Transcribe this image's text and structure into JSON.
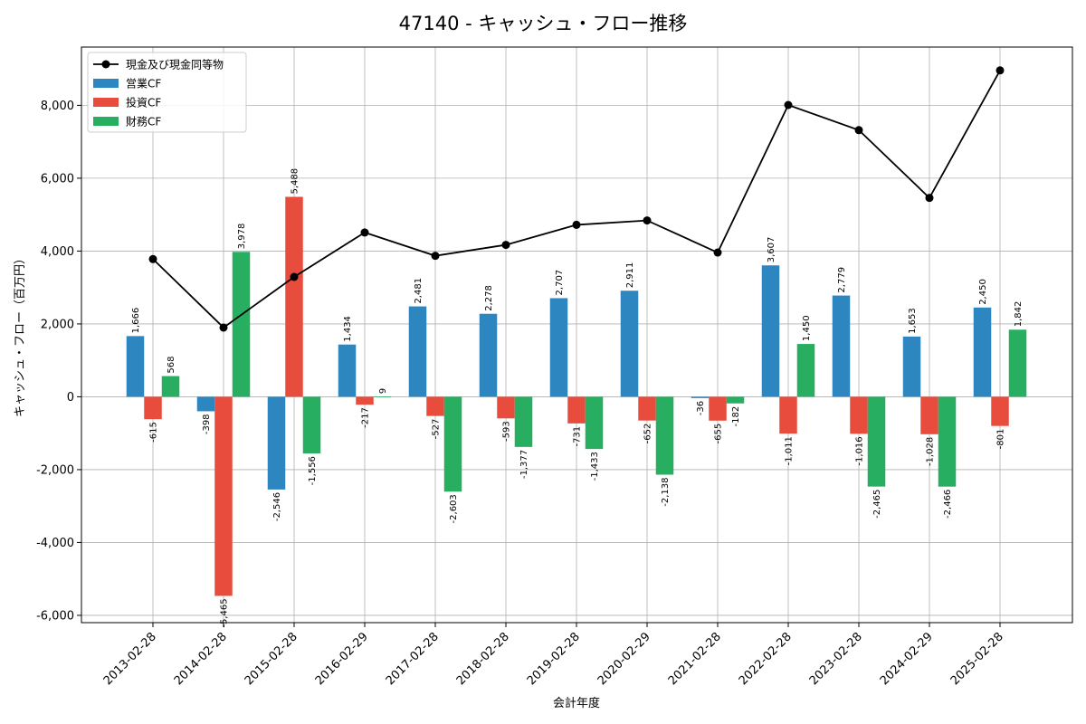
{
  "chart_data": {
    "type": "bar",
    "title": "47140 - キャッシュ・フロー推移",
    "xlabel": "会計年度",
    "ylabel": "キャッシュ・フロー（百万円）",
    "categories": [
      "2013-02-28",
      "2014-02-28",
      "2015-02-28",
      "2016-02-29",
      "2017-02-28",
      "2018-02-28",
      "2019-02-28",
      "2020-02-29",
      "2021-02-28",
      "2022-02-28",
      "2023-02-28",
      "2024-02-29",
      "2025-02-28"
    ],
    "ylim": [
      -6200,
      9600
    ],
    "yticks": [
      -6000,
      -4000,
      -2000,
      0,
      2000,
      4000,
      6000,
      8000
    ],
    "ytick_labels": [
      "-6,000",
      "-4,000",
      "-2,000",
      "0",
      "2,000",
      "4,000",
      "6,000",
      "8,000"
    ],
    "grid": true,
    "legend_position": "top-left",
    "series": [
      {
        "name": "営業CF",
        "kind": "bar",
        "color": "#2e86c1",
        "values": [
          1666,
          -398,
          -2546,
          1434,
          2481,
          2278,
          2707,
          2911,
          -36,
          3607,
          2779,
          1653,
          2450
        ],
        "labels": [
          "1,666",
          "-398",
          "-2,546",
          "1,434",
          "2,481",
          "2,278",
          "2,707",
          "2,911",
          "-36",
          "3,607",
          "2,779",
          "1,653",
          "2,450"
        ]
      },
      {
        "name": "投資CF",
        "kind": "bar",
        "color": "#e74c3c",
        "values": [
          -615,
          -5465,
          5488,
          -217,
          -527,
          -593,
          -731,
          -652,
          -655,
          -1011,
          -1016,
          -1028,
          -801
        ],
        "labels": [
          "-615",
          "-5,465",
          "5,488",
          "-217",
          "-527",
          "-593",
          "-731",
          "-652",
          "-655",
          "-1,011",
          "-1,016",
          "-1,028",
          "-801"
        ]
      },
      {
        "name": "財務CF",
        "kind": "bar",
        "color": "#27ae60",
        "values": [
          568,
          3978,
          -1556,
          9,
          -2603,
          -1377,
          -1433,
          -2138,
          -182,
          1450,
          -2465,
          -2466,
          1842
        ],
        "labels": [
          "568",
          "3,978",
          "-1,556",
          "9",
          "-2,603",
          "-1,377",
          "-1,433",
          "-2,138",
          "-182",
          "1,450",
          "-2,465",
          "-2,466",
          "1,842"
        ]
      },
      {
        "name": "現金及び現金同等物",
        "kind": "line",
        "color": "#000000",
        "values": [
          3780,
          1900,
          3290,
          4510,
          3870,
          4170,
          4720,
          4840,
          3960,
          8010,
          7320,
          5460,
          8960
        ]
      }
    ]
  }
}
